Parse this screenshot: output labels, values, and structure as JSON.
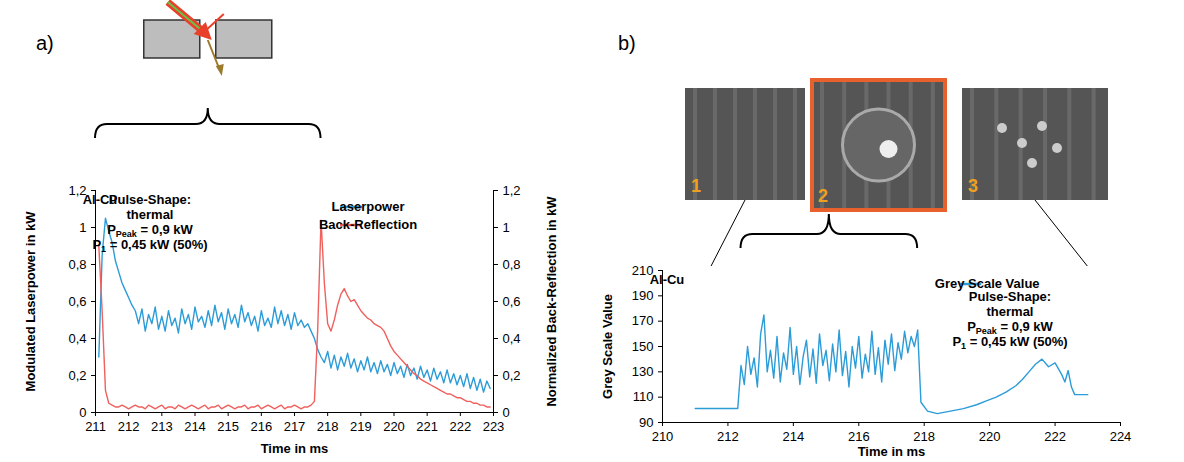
{
  "chart_data": [
    {
      "type": "line",
      "panel": "a)",
      "x": [
        211.1,
        211.2,
        211.3,
        211.4,
        211.5,
        211.6,
        211.7,
        211.8,
        211.9,
        212.0,
        212.1,
        212.2,
        212.3,
        212.4,
        212.5,
        212.6,
        212.7,
        212.8,
        212.9,
        213.0,
        213.1,
        213.2,
        213.3,
        213.4,
        213.5,
        213.6,
        213.7,
        213.8,
        213.9,
        214.0,
        214.1,
        214.2,
        214.3,
        214.4,
        214.5,
        214.6,
        214.7,
        214.8,
        214.9,
        215.0,
        215.1,
        215.2,
        215.3,
        215.4,
        215.5,
        215.6,
        215.7,
        215.8,
        215.9,
        216.0,
        216.1,
        216.2,
        216.3,
        216.4,
        216.5,
        216.6,
        216.7,
        216.8,
        216.9,
        217.0,
        217.1,
        217.2,
        217.3,
        217.4,
        217.5,
        217.6,
        217.7,
        217.8,
        217.9,
        218.0,
        218.1,
        218.2,
        218.3,
        218.4,
        218.5,
        218.6,
        218.7,
        218.8,
        218.9,
        219.0,
        219.1,
        219.2,
        219.3,
        219.4,
        219.5,
        219.6,
        219.7,
        219.8,
        219.9,
        220.0,
        220.1,
        220.2,
        220.3,
        220.4,
        220.5,
        220.6,
        220.7,
        220.8,
        220.9,
        221.0,
        221.1,
        221.2,
        221.3,
        221.4,
        221.5,
        221.6,
        221.7,
        221.8,
        221.9,
        222.0,
        222.1,
        222.2,
        222.3,
        222.4,
        222.5,
        222.6,
        222.7,
        222.8,
        222.9
      ],
      "series": [
        {
          "name": "Laserpower",
          "color": "#2b9cd8",
          "values": [
            0.3,
            0.85,
            1.05,
            0.98,
            0.92,
            0.82,
            0.76,
            0.7,
            0.66,
            0.62,
            0.58,
            0.55,
            0.48,
            0.56,
            0.44,
            0.53,
            0.48,
            0.57,
            0.45,
            0.52,
            0.44,
            0.55,
            0.47,
            0.51,
            0.43,
            0.56,
            0.48,
            0.53,
            0.45,
            0.57,
            0.49,
            0.52,
            0.46,
            0.55,
            0.47,
            0.58,
            0.49,
            0.54,
            0.45,
            0.56,
            0.48,
            0.53,
            0.46,
            0.58,
            0.49,
            0.54,
            0.47,
            0.52,
            0.44,
            0.55,
            0.47,
            0.51,
            0.46,
            0.57,
            0.48,
            0.55,
            0.47,
            0.53,
            0.45,
            0.54,
            0.47,
            0.5,
            0.46,
            0.48,
            0.44,
            0.4,
            0.34,
            0.3,
            0.27,
            0.33,
            0.24,
            0.31,
            0.23,
            0.3,
            0.25,
            0.32,
            0.24,
            0.29,
            0.22,
            0.28,
            0.23,
            0.3,
            0.22,
            0.27,
            0.21,
            0.28,
            0.22,
            0.26,
            0.2,
            0.27,
            0.21,
            0.25,
            0.19,
            0.26,
            0.2,
            0.24,
            0.18,
            0.25,
            0.19,
            0.23,
            0.17,
            0.24,
            0.18,
            0.22,
            0.16,
            0.23,
            0.16,
            0.21,
            0.15,
            0.2,
            0.14,
            0.21,
            0.13,
            0.19,
            0.12,
            0.18,
            0.11,
            0.17,
            0.13
          ]
        },
        {
          "name": "Back-Reflection",
          "color": "#f0605d",
          "axis": "y2",
          "values": [
            0.9,
            0.55,
            0.12,
            0.05,
            0.04,
            0.03,
            0.03,
            0.04,
            0.03,
            0.02,
            0.03,
            0.04,
            0.03,
            0.03,
            0.02,
            0.04,
            0.03,
            0.02,
            0.03,
            0.04,
            0.02,
            0.03,
            0.03,
            0.02,
            0.04,
            0.03,
            0.02,
            0.03,
            0.04,
            0.03,
            0.02,
            0.03,
            0.04,
            0.02,
            0.03,
            0.03,
            0.04,
            0.02,
            0.03,
            0.04,
            0.03,
            0.02,
            0.03,
            0.03,
            0.04,
            0.02,
            0.03,
            0.03,
            0.04,
            0.02,
            0.03,
            0.04,
            0.03,
            0.02,
            0.03,
            0.04,
            0.02,
            0.03,
            0.03,
            0.04,
            0.03,
            0.02,
            0.03,
            0.03,
            0.04,
            0.06,
            0.45,
            1.04,
            0.7,
            0.48,
            0.44,
            0.5,
            0.58,
            0.64,
            0.67,
            0.63,
            0.6,
            0.61,
            0.58,
            0.55,
            0.53,
            0.51,
            0.5,
            0.48,
            0.47,
            0.46,
            0.44,
            0.4,
            0.36,
            0.33,
            0.31,
            0.29,
            0.27,
            0.25,
            0.23,
            0.21,
            0.2,
            0.18,
            0.17,
            0.16,
            0.15,
            0.14,
            0.13,
            0.12,
            0.11,
            0.1,
            0.1,
            0.09,
            0.08,
            0.08,
            0.07,
            0.06,
            0.06,
            0.05,
            0.05,
            0.04,
            0.04,
            0.03,
            0.03
          ]
        }
      ],
      "xlim": [
        211,
        223
      ],
      "xticks": [
        211,
        212,
        213,
        214,
        215,
        216,
        217,
        218,
        219,
        220,
        221,
        222,
        223
      ],
      "ylim": [
        0,
        1.2
      ],
      "yticks": [
        0,
        {
          "value": 0.2,
          "label": "0,2"
        },
        {
          "value": 0.4,
          "label": "0,4"
        },
        {
          "value": 0.6,
          "label": "0,6"
        },
        {
          "value": 0.8,
          "label": "0,8"
        },
        1,
        {
          "value": 1.2,
          "label": "1,2"
        }
      ],
      "y2lim": [
        0,
        1.2
      ],
      "y2ticks": [
        0,
        {
          "value": 0.2,
          "label": "0,2"
        },
        {
          "value": 0.4,
          "label": "0,4"
        },
        {
          "value": 0.6,
          "label": "0,6"
        },
        {
          "value": 0.8,
          "label": "0,8"
        },
        1,
        {
          "value": 1.2,
          "label": "1,2"
        }
      ],
      "xlabel": "Time in ms",
      "ylabel": "Modulated Laserpower in kW",
      "y2label": "Normalized Back-Reflection in kW",
      "legend": "top-right",
      "grid": false,
      "annotations": [
        "Al-Cu",
        [
          "Pulse-Shape:",
          "thermal",
          {
            "text": "P",
            "subscript": "Peak",
            "after": " = 0,9 kW"
          },
          {
            "text": "P",
            "subscript": "1",
            "after": " = 0,45 kW (50%)"
          }
        ]
      ],
      "bracket": [
        211.0,
        217.8
      ]
    },
    {
      "type": "line",
      "panel": "b)",
      "x": [
        211.0,
        212.3,
        212.4,
        212.5,
        212.6,
        212.7,
        212.8,
        212.9,
        213.0,
        213.1,
        213.2,
        213.3,
        213.4,
        213.5,
        213.6,
        213.7,
        213.8,
        213.9,
        214.0,
        214.1,
        214.2,
        214.3,
        214.4,
        214.5,
        214.6,
        214.7,
        214.8,
        214.9,
        215.0,
        215.1,
        215.2,
        215.3,
        215.4,
        215.5,
        215.6,
        215.7,
        215.8,
        215.9,
        216.0,
        216.1,
        216.2,
        216.3,
        216.4,
        216.5,
        216.6,
        216.7,
        216.8,
        216.9,
        217.0,
        217.1,
        217.2,
        217.3,
        217.4,
        217.5,
        217.6,
        217.7,
        217.8,
        217.9,
        218.1,
        218.4,
        218.8,
        219.2,
        219.6,
        219.9,
        220.2,
        220.5,
        220.8,
        221.0,
        221.2,
        221.4,
        221.6,
        221.8,
        222.0,
        222.2,
        222.3,
        222.4,
        222.5,
        222.6,
        223.0
      ],
      "series": [
        {
          "name": "Grey Scale Value",
          "color": "#2b9cd8",
          "values": [
            101,
            101,
            135,
            120,
            150,
            128,
            141,
            118,
            160,
            175,
            130,
            147,
            125,
            158,
            122,
            145,
            132,
            165,
            128,
            150,
            120,
            142,
            155,
            126,
            148,
            121,
            160,
            135,
            147,
            123,
            152,
            130,
            163,
            127,
            146,
            118,
            150,
            133,
            158,
            125,
            144,
            130,
            162,
            128,
            149,
            122,
            155,
            136,
            160,
            131,
            153,
            140,
            162,
            145,
            158,
            150,
            163,
            106,
            99,
            97,
            99,
            101,
            104,
            107,
            110,
            114,
            119,
            124,
            130,
            136,
            140,
            134,
            137,
            128,
            122,
            131,
            118,
            112,
            112
          ]
        }
      ],
      "xlim": [
        210,
        224
      ],
      "xticks": [
        210,
        212,
        214,
        216,
        218,
        220,
        222,
        224
      ],
      "ylim": [
        90,
        210
      ],
      "yticks": [
        90,
        110,
        130,
        150,
        170,
        190,
        210
      ],
      "xlabel": "Time in ms",
      "ylabel": "Grey Scale Value",
      "legend": "top-right",
      "grid": false,
      "annotations": [
        "Al-Cu",
        [
          "Pulse-Shape:",
          "thermal",
          {
            "text": "P",
            "subscript": "Peak",
            "after": " = 0,9 kW"
          },
          {
            "text": "P",
            "subscript": "1",
            "after": " = 0,45 kW (50%)"
          }
        ]
      ],
      "images": [
        {
          "label": "1",
          "time": 211.5
        },
        {
          "label": "2",
          "time_range": [
            212.4,
            217.8
          ],
          "color": "#e8602c"
        },
        {
          "label": "3",
          "time": 223.0
        }
      ]
    }
  ]
}
